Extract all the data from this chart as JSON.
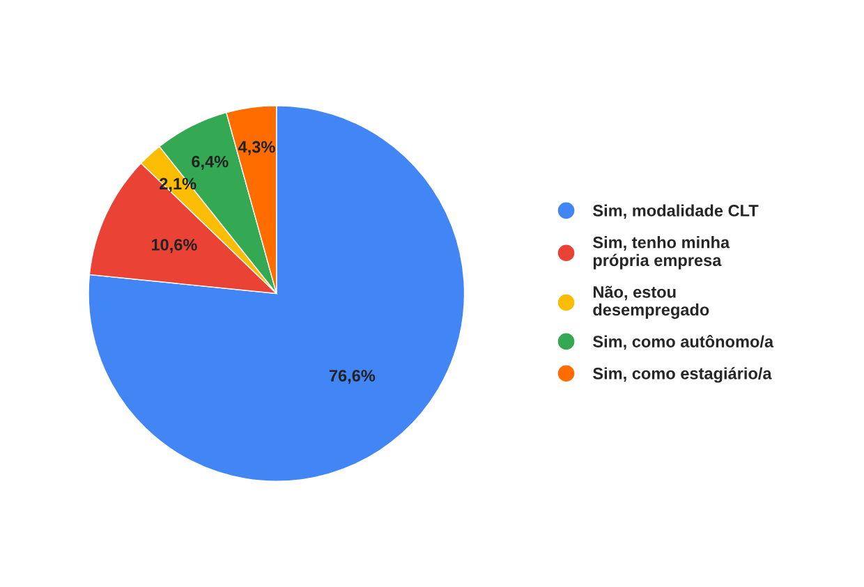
{
  "chart_data": {
    "type": "pie",
    "categories": [
      "Sim, modalidade CLT",
      "Sim, tenho minha\nprópria empresa",
      "Não, estou\ndesempregado",
      "Sim, como autônomo/a",
      "Sim, como estagiário/a"
    ],
    "values": [
      76.6,
      10.6,
      2.1,
      6.4,
      4.3
    ],
    "colors": [
      "#4285f4",
      "#ea4335",
      "#fbbc04",
      "#34a853",
      "#ff6d01"
    ],
    "value_labels": [
      "76,6%",
      "10,6%",
      "2,1%",
      "6,4%",
      "4,3%"
    ],
    "legend": "right"
  }
}
